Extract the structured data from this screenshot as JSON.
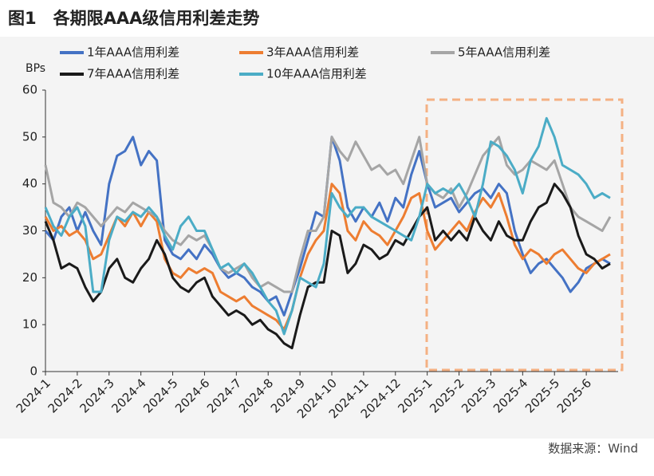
{
  "chart_data": {
    "type": "line",
    "title": "图1　各期限AAA级信用利差走势",
    "y_label": "BPs",
    "source": "数据来源：Wind",
    "categories": [
      "2024-1",
      null,
      null,
      null,
      "2024-2",
      null,
      null,
      null,
      "2024-3",
      null,
      null,
      null,
      "2024-4",
      null,
      null,
      null,
      "2024-5",
      null,
      null,
      null,
      "2024-6",
      null,
      null,
      null,
      "2024-7",
      null,
      null,
      null,
      "2024-8",
      null,
      null,
      null,
      "2024-9",
      null,
      null,
      null,
      "2024-10",
      null,
      null,
      null,
      "2024-11",
      null,
      null,
      null,
      "2024-12",
      null,
      null,
      null,
      "2025-1",
      null,
      null,
      null,
      "2025-2",
      null,
      null,
      null,
      "2025-3",
      null,
      null,
      null,
      "2025-4",
      null,
      null,
      null,
      "2025-5",
      null,
      null,
      null,
      "2025-6",
      null,
      null,
      null
    ],
    "series": [
      {
        "name": "1年AAA信用利差",
        "color": "#4472c4",
        "values": [
          30,
          28,
          33,
          35,
          30,
          34,
          30,
          27,
          40,
          46,
          47,
          50,
          44,
          47,
          45,
          28,
          25,
          24,
          26,
          24,
          27,
          25,
          22,
          20,
          21,
          20,
          18,
          17,
          15,
          16,
          12,
          17,
          22,
          28,
          34,
          33,
          50,
          45,
          35,
          32,
          35,
          33,
          36,
          32,
          37,
          35,
          42,
          47,
          40,
          35,
          36,
          37,
          34,
          36,
          38,
          39,
          37,
          40,
          38,
          30,
          25,
          21,
          23,
          24,
          22,
          20,
          17,
          19,
          22,
          23,
          24,
          23
        ]
      },
      {
        "name": "3年AAA信用利差",
        "color": "#ed7d31",
        "values": [
          33,
          30,
          31,
          29,
          30,
          28,
          24,
          25,
          29,
          33,
          31,
          34,
          31,
          34,
          32,
          24,
          21,
          20,
          22,
          21,
          22,
          21,
          17,
          16,
          15,
          16,
          14,
          13,
          12,
          11,
          9,
          13,
          20,
          25,
          28,
          30,
          40,
          38,
          30,
          28,
          32,
          30,
          29,
          27,
          30,
          33,
          37,
          38,
          30,
          26,
          28,
          30,
          32,
          30,
          34,
          37,
          35,
          38,
          33,
          27,
          24,
          26,
          25,
          23,
          25,
          26,
          24,
          22,
          21,
          23,
          24,
          25
        ]
      },
      {
        "name": "5年AAA信用利差",
        "color": "#a5a5a5",
        "values": [
          44,
          36,
          35,
          33,
          36,
          35,
          33,
          31,
          33,
          35,
          34,
          36,
          35,
          34,
          33,
          30,
          28,
          27,
          29,
          28,
          29,
          26,
          22,
          21,
          22,
          23,
          20,
          18,
          19,
          18,
          17,
          17,
          24,
          30,
          30,
          33,
          50,
          47,
          45,
          49,
          46,
          43,
          44,
          42,
          43,
          40,
          45,
          50,
          40,
          38,
          37,
          39,
          35,
          38,
          42,
          46,
          48,
          50,
          44,
          42,
          43,
          45,
          44,
          43,
          45,
          40,
          35,
          33,
          32,
          31,
          30,
          33
        ]
      },
      {
        "name": "7年AAA信用利差",
        "color": "#1a1a1a",
        "values": [
          32,
          28,
          22,
          23,
          22,
          18,
          15,
          17,
          22,
          24,
          20,
          19,
          22,
          24,
          28,
          25,
          20,
          18,
          17,
          19,
          20,
          16,
          14,
          12,
          13,
          12,
          10,
          11,
          9,
          8,
          6,
          5,
          12,
          18,
          19,
          19,
          30,
          29,
          21,
          23,
          27,
          26,
          24,
          25,
          28,
          27,
          30,
          33,
          35,
          28,
          30,
          28,
          30,
          28,
          33,
          30,
          28,
          32,
          29,
          28,
          28,
          32,
          35,
          36,
          40,
          38,
          35,
          29,
          25,
          24,
          22,
          23
        ]
      },
      {
        "name": "10年AAA信用利差",
        "color": "#4bacc6",
        "values": [
          35,
          31,
          29,
          33,
          35,
          31,
          17,
          17,
          28,
          33,
          32,
          34,
          33,
          35,
          33,
          29,
          26,
          31,
          33,
          30,
          30,
          26,
          22,
          23,
          21,
          23,
          21,
          18,
          15,
          13,
          8,
          13,
          20,
          19,
          18,
          23,
          38,
          35,
          33,
          35,
          35,
          33,
          32,
          31,
          30,
          29,
          28,
          33,
          40,
          38,
          39,
          38,
          40,
          37,
          33,
          40,
          49,
          48,
          46,
          43,
          38,
          45,
          48,
          54,
          50,
          44,
          43,
          42,
          40,
          37,
          38,
          37
        ]
      }
    ],
    "ylim": [
      0,
      60
    ],
    "yticks": [
      0,
      10,
      20,
      30,
      40,
      50,
      60
    ]
  }
}
